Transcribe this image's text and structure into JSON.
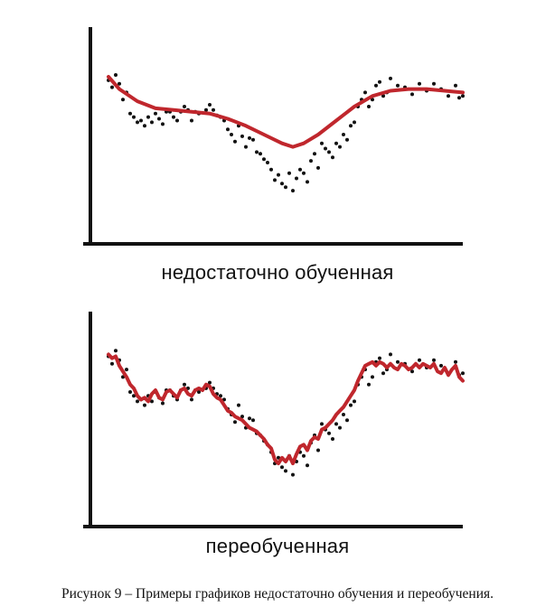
{
  "chart_data": [
    {
      "type": "scatter",
      "panel": "top",
      "label": "недостаточно обученная",
      "grid": false,
      "legend": "none",
      "xlim": [
        0,
        100
      ],
      "ylim": [
        0,
        100
      ],
      "colors": {
        "points": "#111111",
        "fit": "#c0272d",
        "axes": "#111111"
      },
      "points": [
        [
          2,
          81
        ],
        [
          3,
          77
        ],
        [
          4,
          84
        ],
        [
          5,
          79
        ],
        [
          6,
          70
        ],
        [
          7,
          74
        ],
        [
          8,
          62
        ],
        [
          9,
          60
        ],
        [
          10,
          57
        ],
        [
          11,
          58
        ],
        [
          12,
          55
        ],
        [
          13,
          60
        ],
        [
          14,
          57
        ],
        [
          15,
          62
        ],
        [
          16,
          59
        ],
        [
          17,
          56
        ],
        [
          18,
          63
        ],
        [
          19,
          63
        ],
        [
          20,
          60
        ],
        [
          21,
          58
        ],
        [
          22,
          63
        ],
        [
          23,
          66
        ],
        [
          24,
          64
        ],
        [
          25,
          58
        ],
        [
          26,
          63
        ],
        [
          27,
          62
        ],
        [
          29,
          64
        ],
        [
          30,
          67
        ],
        [
          31,
          64
        ],
        [
          32,
          61
        ],
        [
          33,
          60
        ],
        [
          34,
          58
        ],
        [
          35,
          53
        ],
        [
          36,
          50
        ],
        [
          37,
          46
        ],
        [
          38,
          55
        ],
        [
          39,
          49
        ],
        [
          40,
          43
        ],
        [
          41,
          48
        ],
        [
          42,
          47
        ],
        [
          43,
          40
        ],
        [
          44,
          39
        ],
        [
          45,
          36
        ],
        [
          46,
          34
        ],
        [
          47,
          30
        ],
        [
          48,
          24
        ],
        [
          49,
          27
        ],
        [
          50,
          22
        ],
        [
          51,
          20
        ],
        [
          52,
          28
        ],
        [
          53,
          18
        ],
        [
          54,
          25
        ],
        [
          55,
          30
        ],
        [
          56,
          28
        ],
        [
          57,
          23
        ],
        [
          58,
          35
        ],
        [
          59,
          39
        ],
        [
          60,
          31
        ],
        [
          61,
          45
        ],
        [
          62,
          42
        ],
        [
          63,
          40
        ],
        [
          64,
          37
        ],
        [
          65,
          45
        ],
        [
          66,
          43
        ],
        [
          67,
          50
        ],
        [
          68,
          47
        ],
        [
          69,
          55
        ],
        [
          70,
          57
        ],
        [
          71,
          66
        ],
        [
          72,
          70
        ],
        [
          73,
          74
        ],
        [
          74,
          66
        ],
        [
          75,
          70
        ],
        [
          76,
          78
        ],
        [
          77,
          80
        ],
        [
          78,
          72
        ],
        [
          79,
          74
        ],
        [
          80,
          82
        ],
        [
          82,
          78
        ],
        [
          84,
          77
        ],
        [
          86,
          73
        ],
        [
          88,
          79
        ],
        [
          90,
          75
        ],
        [
          92,
          79
        ],
        [
          94,
          76
        ],
        [
          96,
          72
        ],
        [
          98,
          78
        ],
        [
          99,
          71
        ],
        [
          100,
          72
        ]
      ],
      "fit_line": [
        [
          2,
          83
        ],
        [
          5,
          76
        ],
        [
          10,
          69
        ],
        [
          15,
          65
        ],
        [
          20,
          64
        ],
        [
          25,
          63
        ],
        [
          30,
          62
        ],
        [
          35,
          59
        ],
        [
          40,
          55
        ],
        [
          45,
          50
        ],
        [
          50,
          45
        ],
        [
          53,
          43
        ],
        [
          56,
          45
        ],
        [
          60,
          50
        ],
        [
          65,
          58
        ],
        [
          70,
          66
        ],
        [
          75,
          72
        ],
        [
          80,
          75
        ],
        [
          85,
          76
        ],
        [
          90,
          76
        ],
        [
          95,
          75
        ],
        [
          100,
          74
        ]
      ]
    },
    {
      "type": "scatter",
      "panel": "bottom",
      "label": "переобученная",
      "grid": false,
      "legend": "none",
      "xlim": [
        0,
        100
      ],
      "ylim": [
        0,
        100
      ],
      "colors": {
        "points": "#111111",
        "fit": "#c0272d",
        "axes": "#111111"
      },
      "points": [
        [
          2,
          81
        ],
        [
          3,
          77
        ],
        [
          4,
          84
        ],
        [
          5,
          79
        ],
        [
          6,
          70
        ],
        [
          7,
          74
        ],
        [
          8,
          62
        ],
        [
          9,
          60
        ],
        [
          10,
          57
        ],
        [
          11,
          58
        ],
        [
          12,
          55
        ],
        [
          13,
          60
        ],
        [
          14,
          57
        ],
        [
          15,
          62
        ],
        [
          16,
          59
        ],
        [
          17,
          56
        ],
        [
          18,
          63
        ],
        [
          19,
          63
        ],
        [
          20,
          60
        ],
        [
          21,
          58
        ],
        [
          22,
          63
        ],
        [
          23,
          66
        ],
        [
          24,
          64
        ],
        [
          25,
          58
        ],
        [
          26,
          63
        ],
        [
          27,
          62
        ],
        [
          29,
          64
        ],
        [
          30,
          67
        ],
        [
          31,
          64
        ],
        [
          32,
          61
        ],
        [
          33,
          60
        ],
        [
          34,
          58
        ],
        [
          35,
          53
        ],
        [
          36,
          50
        ],
        [
          37,
          46
        ],
        [
          38,
          55
        ],
        [
          39,
          49
        ],
        [
          40,
          43
        ],
        [
          41,
          48
        ],
        [
          42,
          47
        ],
        [
          43,
          40
        ],
        [
          44,
          39
        ],
        [
          45,
          36
        ],
        [
          46,
          34
        ],
        [
          47,
          30
        ],
        [
          48,
          24
        ],
        [
          49,
          27
        ],
        [
          50,
          22
        ],
        [
          51,
          20
        ],
        [
          52,
          28
        ],
        [
          53,
          18
        ],
        [
          54,
          25
        ],
        [
          55,
          30
        ],
        [
          56,
          28
        ],
        [
          57,
          23
        ],
        [
          58,
          35
        ],
        [
          59,
          39
        ],
        [
          60,
          31
        ],
        [
          61,
          45
        ],
        [
          62,
          42
        ],
        [
          63,
          40
        ],
        [
          64,
          37
        ],
        [
          65,
          45
        ],
        [
          66,
          43
        ],
        [
          67,
          50
        ],
        [
          68,
          47
        ],
        [
          69,
          55
        ],
        [
          70,
          57
        ],
        [
          71,
          66
        ],
        [
          72,
          70
        ],
        [
          73,
          74
        ],
        [
          74,
          66
        ],
        [
          75,
          70
        ],
        [
          76,
          78
        ],
        [
          77,
          80
        ],
        [
          78,
          72
        ],
        [
          79,
          74
        ],
        [
          80,
          82
        ],
        [
          82,
          78
        ],
        [
          84,
          77
        ],
        [
          86,
          73
        ],
        [
          88,
          79
        ],
        [
          90,
          75
        ],
        [
          92,
          79
        ],
        [
          94,
          76
        ],
        [
          96,
          72
        ],
        [
          98,
          78
        ],
        [
          99,
          71
        ],
        [
          100,
          72
        ]
      ],
      "fit_line": [
        [
          2,
          82
        ],
        [
          3,
          80
        ],
        [
          4,
          81
        ],
        [
          5,
          76
        ],
        [
          6,
          73
        ],
        [
          7,
          70
        ],
        [
          8,
          66
        ],
        [
          9,
          64
        ],
        [
          10,
          60
        ],
        [
          11,
          58
        ],
        [
          12,
          59
        ],
        [
          13,
          57
        ],
        [
          14,
          61
        ],
        [
          15,
          63
        ],
        [
          16,
          59
        ],
        [
          17,
          58
        ],
        [
          18,
          62
        ],
        [
          19,
          63
        ],
        [
          20,
          61
        ],
        [
          21,
          59
        ],
        [
          22,
          63
        ],
        [
          23,
          64
        ],
        [
          24,
          61
        ],
        [
          25,
          60
        ],
        [
          26,
          63
        ],
        [
          27,
          64
        ],
        [
          28,
          63
        ],
        [
          29,
          66
        ],
        [
          30,
          65
        ],
        [
          31,
          61
        ],
        [
          32,
          59
        ],
        [
          33,
          58
        ],
        [
          34,
          55
        ],
        [
          35,
          52
        ],
        [
          36,
          51
        ],
        [
          37,
          49
        ],
        [
          38,
          48
        ],
        [
          39,
          47
        ],
        [
          40,
          45
        ],
        [
          41,
          43
        ],
        [
          42,
          42
        ],
        [
          43,
          41
        ],
        [
          44,
          39
        ],
        [
          45,
          37
        ],
        [
          46,
          34
        ],
        [
          47,
          32
        ],
        [
          48,
          26
        ],
        [
          49,
          24
        ],
        [
          50,
          27
        ],
        [
          51,
          25
        ],
        [
          52,
          28
        ],
        [
          53,
          24
        ],
        [
          54,
          29
        ],
        [
          55,
          33
        ],
        [
          56,
          34
        ],
        [
          57,
          31
        ],
        [
          58,
          36
        ],
        [
          59,
          38
        ],
        [
          60,
          37
        ],
        [
          61,
          42
        ],
        [
          62,
          43
        ],
        [
          63,
          45
        ],
        [
          64,
          47
        ],
        [
          65,
          50
        ],
        [
          66,
          52
        ],
        [
          67,
          54
        ],
        [
          68,
          57
        ],
        [
          69,
          60
        ],
        [
          70,
          63
        ],
        [
          71,
          68
        ],
        [
          72,
          72
        ],
        [
          73,
          76
        ],
        [
          74,
          77
        ],
        [
          75,
          78
        ],
        [
          76,
          76
        ],
        [
          77,
          78
        ],
        [
          78,
          77
        ],
        [
          79,
          75
        ],
        [
          80,
          77
        ],
        [
          81,
          75
        ],
        [
          82,
          74
        ],
        [
          83,
          77
        ],
        [
          84,
          76
        ],
        [
          85,
          74
        ],
        [
          86,
          75
        ],
        [
          87,
          77
        ],
        [
          88,
          75
        ],
        [
          89,
          77
        ],
        [
          90,
          76
        ],
        [
          91,
          75
        ],
        [
          92,
          77
        ],
        [
          93,
          73
        ],
        [
          94,
          72
        ],
        [
          95,
          75
        ],
        [
          96,
          71
        ],
        [
          97,
          74
        ],
        [
          98,
          76
        ],
        [
          99,
          70
        ],
        [
          100,
          68
        ]
      ]
    }
  ],
  "caption": "Рисунок 9 – Примеры графиков недостаточно обучения и переобучения."
}
